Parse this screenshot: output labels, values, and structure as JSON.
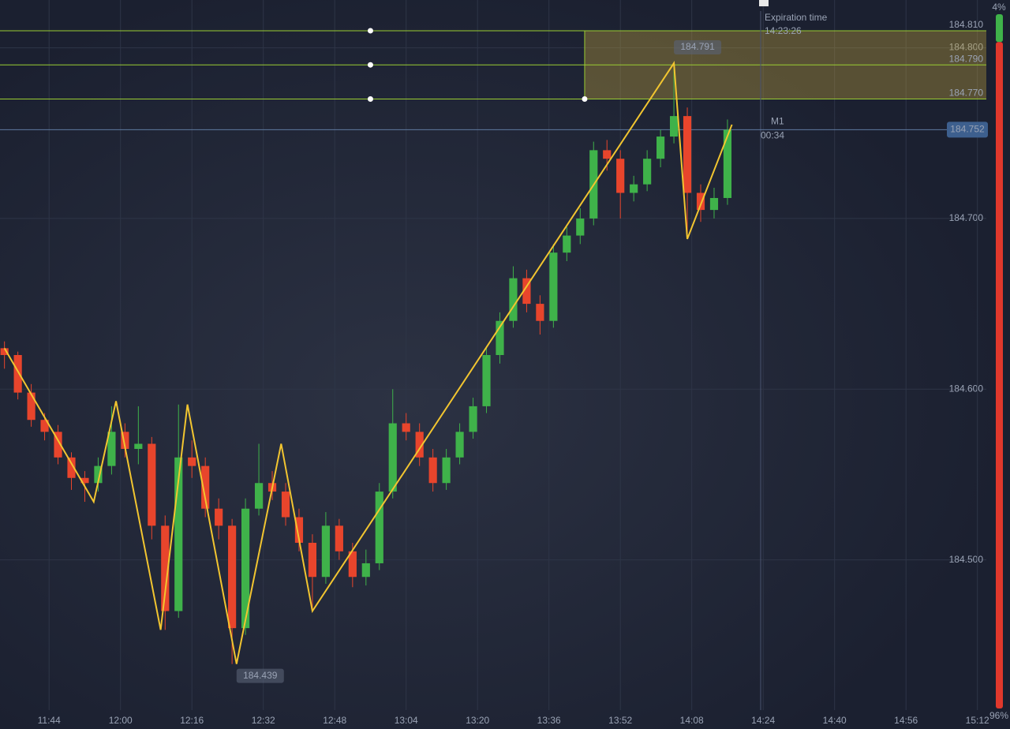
{
  "chart_data": {
    "type": "candlestick",
    "up_color": "#3fb24a",
    "down_color": "#e8452c",
    "x": [
      "11:34",
      "11:37",
      "11:40",
      "11:43",
      "11:46",
      "11:49",
      "11:52",
      "11:55",
      "11:58",
      "12:01",
      "12:04",
      "12:07",
      "12:10",
      "12:13",
      "12:16",
      "12:19",
      "12:22",
      "12:25",
      "12:28",
      "12:31",
      "12:34",
      "12:37",
      "12:40",
      "12:43",
      "12:46",
      "12:49",
      "12:52",
      "12:55",
      "12:58",
      "13:01",
      "13:04",
      "13:07",
      "13:10",
      "13:13",
      "13:16",
      "13:19",
      "13:22",
      "13:25",
      "13:28",
      "13:31",
      "13:34",
      "13:37",
      "13:40",
      "13:43",
      "13:46",
      "13:49",
      "13:52",
      "13:55",
      "13:58",
      "14:01",
      "14:04",
      "14:07",
      "14:10",
      "14:13",
      "14:16"
    ],
    "ohlc": [
      [
        184.624,
        184.628,
        184.612,
        184.62
      ],
      [
        184.62,
        184.622,
        184.594,
        184.598
      ],
      [
        184.598,
        184.603,
        184.578,
        184.582
      ],
      [
        184.582,
        184.586,
        184.57,
        184.575
      ],
      [
        184.575,
        184.579,
        184.556,
        184.56
      ],
      [
        184.56,
        184.563,
        184.541,
        184.548
      ],
      [
        184.548,
        184.552,
        184.534,
        184.545
      ],
      [
        184.545,
        184.56,
        184.54,
        184.555
      ],
      [
        184.555,
        184.59,
        184.55,
        184.575
      ],
      [
        184.575,
        184.58,
        184.56,
        184.565
      ],
      [
        184.565,
        184.59,
        184.556,
        184.568
      ],
      [
        184.568,
        184.572,
        184.512,
        184.52
      ],
      [
        184.52,
        184.526,
        184.459,
        184.47
      ],
      [
        184.47,
        184.591,
        184.466,
        184.56
      ],
      [
        184.56,
        184.57,
        184.548,
        184.555
      ],
      [
        184.555,
        184.56,
        184.525,
        184.53
      ],
      [
        184.53,
        184.536,
        184.512,
        184.52
      ],
      [
        184.52,
        184.524,
        184.439,
        184.46
      ],
      [
        184.46,
        184.536,
        184.456,
        184.53
      ],
      [
        184.53,
        184.568,
        184.526,
        184.545
      ],
      [
        184.545,
        184.552,
        184.535,
        184.54
      ],
      [
        184.54,
        184.545,
        184.52,
        184.525
      ],
      [
        184.525,
        184.53,
        184.505,
        184.51
      ],
      [
        184.51,
        184.515,
        184.47,
        184.49
      ],
      [
        184.49,
        184.528,
        184.486,
        184.52
      ],
      [
        184.52,
        184.524,
        184.5,
        184.505
      ],
      [
        184.505,
        184.51,
        184.484,
        184.49
      ],
      [
        184.49,
        184.506,
        184.485,
        184.498
      ],
      [
        184.498,
        184.545,
        184.494,
        184.54
      ],
      [
        184.54,
        184.6,
        184.536,
        184.58
      ],
      [
        184.58,
        184.586,
        184.57,
        184.575
      ],
      [
        184.575,
        184.58,
        184.555,
        184.56
      ],
      [
        184.56,
        184.565,
        184.54,
        184.545
      ],
      [
        184.545,
        184.565,
        184.541,
        184.56
      ],
      [
        184.56,
        184.58,
        184.556,
        184.575
      ],
      [
        184.575,
        184.595,
        184.571,
        184.59
      ],
      [
        184.59,
        184.625,
        184.586,
        184.62
      ],
      [
        184.62,
        184.645,
        184.615,
        184.64
      ],
      [
        184.64,
        184.672,
        184.636,
        184.665
      ],
      [
        184.665,
        184.67,
        184.645,
        184.65
      ],
      [
        184.65,
        184.655,
        184.632,
        184.64
      ],
      [
        184.64,
        184.685,
        184.636,
        184.68
      ],
      [
        184.68,
        184.695,
        184.675,
        184.69
      ],
      [
        184.69,
        184.706,
        184.685,
        184.7
      ],
      [
        184.7,
        184.745,
        184.696,
        184.74
      ],
      [
        184.74,
        184.746,
        184.728,
        184.735
      ],
      [
        184.735,
        184.74,
        184.7,
        184.715
      ],
      [
        184.715,
        184.725,
        184.71,
        184.72
      ],
      [
        184.72,
        184.74,
        184.716,
        184.735
      ],
      [
        184.735,
        184.752,
        184.73,
        184.748
      ],
      [
        184.748,
        184.791,
        184.744,
        184.76
      ],
      [
        184.76,
        184.765,
        184.688,
        184.715
      ],
      [
        184.715,
        184.72,
        184.698,
        184.705
      ],
      [
        184.705,
        184.718,
        184.7,
        184.712
      ],
      [
        184.712,
        184.758,
        184.708,
        184.752
      ]
    ],
    "zigzag": {
      "color": "#f2c530",
      "x": [
        "11:34",
        "11:54",
        "11:59",
        "12:09",
        "12:15",
        "12:26",
        "12:36",
        "12:43",
        "14:04",
        "14:07",
        "14:17"
      ],
      "values": [
        184.624,
        184.534,
        184.593,
        184.459,
        184.591,
        184.439,
        184.568,
        184.47,
        184.791,
        184.688,
        184.755
      ]
    },
    "annotations": [
      {
        "x": "14:04",
        "value": 184.791,
        "label": "184.791"
      },
      {
        "x": "12:26",
        "value": 184.439,
        "label": "184.439"
      }
    ],
    "levels": [
      {
        "value": 184.81,
        "label": "184.810"
      },
      {
        "value": 184.79,
        "label": "184.790"
      },
      {
        "value": 184.77,
        "label": "184.770"
      }
    ],
    "level_color": "#9acd32",
    "handle_x": "12:56",
    "zone": {
      "x_start": "13:44",
      "top": 184.81,
      "bottom": 184.77
    },
    "current_price": {
      "value": 184.752,
      "label": "184.752"
    },
    "timeframe": "M1",
    "timer": "00:34",
    "expiration": {
      "title": "Expiration time",
      "time": "14:23:26"
    },
    "xlim": [
      "11:33",
      "15:14"
    ],
    "xticks": [
      "11:44",
      "12:00",
      "12:16",
      "12:32",
      "12:48",
      "13:04",
      "13:20",
      "13:36",
      "13:52",
      "14:08",
      "14:24",
      "14:40",
      "14:56",
      "15:12"
    ],
    "ylim": [
      184.412,
      184.828
    ],
    "yticks": [
      {
        "value": 184.5,
        "label": "184.500"
      },
      {
        "value": 184.6,
        "label": "184.600"
      },
      {
        "value": 184.7,
        "label": "184.700"
      },
      {
        "value": 184.8,
        "label": "184.800"
      }
    ],
    "grid": true,
    "sentiment": {
      "values": [
        4,
        96
      ],
      "value_labels": [
        "4%",
        "96%"
      ],
      "colors": [
        "#3fb24a",
        "#e0382c"
      ]
    }
  }
}
